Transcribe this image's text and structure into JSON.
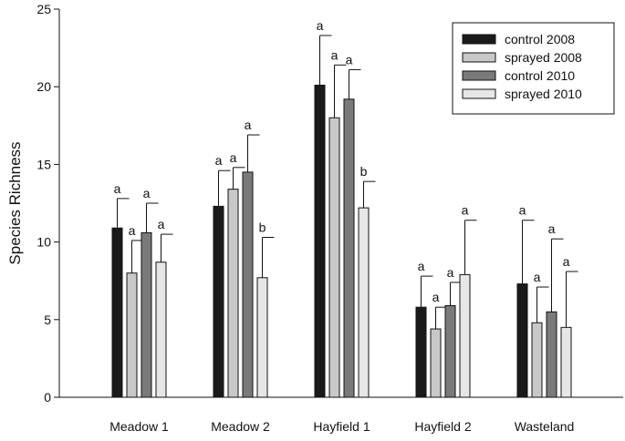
{
  "chart_data": {
    "type": "bar",
    "ylabel": "Species Richness",
    "xlabel": "",
    "ylim": [
      0,
      25
    ],
    "yticks": [
      0,
      5,
      10,
      15,
      20,
      25
    ],
    "categories": [
      "Meadow 1",
      "Meadow 2",
      "Hayfield 1",
      "Hayfield 2",
      "Wasteland"
    ],
    "legend_position": "top-right",
    "series": [
      {
        "name": "control 2008",
        "color": "#1a1a1a",
        "values": [
          10.9,
          12.3,
          20.1,
          5.8,
          7.3
        ],
        "errors": [
          1.9,
          2.3,
          3.2,
          2.0,
          4.1
        ],
        "letters": [
          "a",
          "a",
          "a",
          "a",
          "a"
        ]
      },
      {
        "name": "sprayed 2008",
        "color": "#c8c8c8",
        "values": [
          8.0,
          13.4,
          18.0,
          4.4,
          4.8
        ],
        "errors": [
          2.1,
          1.4,
          3.4,
          1.4,
          2.3
        ],
        "letters": [
          "a",
          "a",
          "a",
          "a",
          "a"
        ]
      },
      {
        "name": "control 2010",
        "color": "#7a7a7a",
        "values": [
          10.6,
          14.5,
          19.2,
          5.9,
          5.5
        ],
        "errors": [
          1.9,
          2.4,
          1.9,
          1.5,
          4.7
        ],
        "letters": [
          "a",
          "a",
          "a",
          "a",
          "a"
        ]
      },
      {
        "name": "sprayed 2010",
        "color": "#e6e6e6",
        "values": [
          8.7,
          7.7,
          12.2,
          7.9,
          4.5
        ],
        "errors": [
          1.8,
          2.6,
          1.7,
          3.5,
          3.6
        ],
        "letters": [
          "a",
          "b",
          "b",
          "a",
          "a"
        ]
      }
    ]
  }
}
